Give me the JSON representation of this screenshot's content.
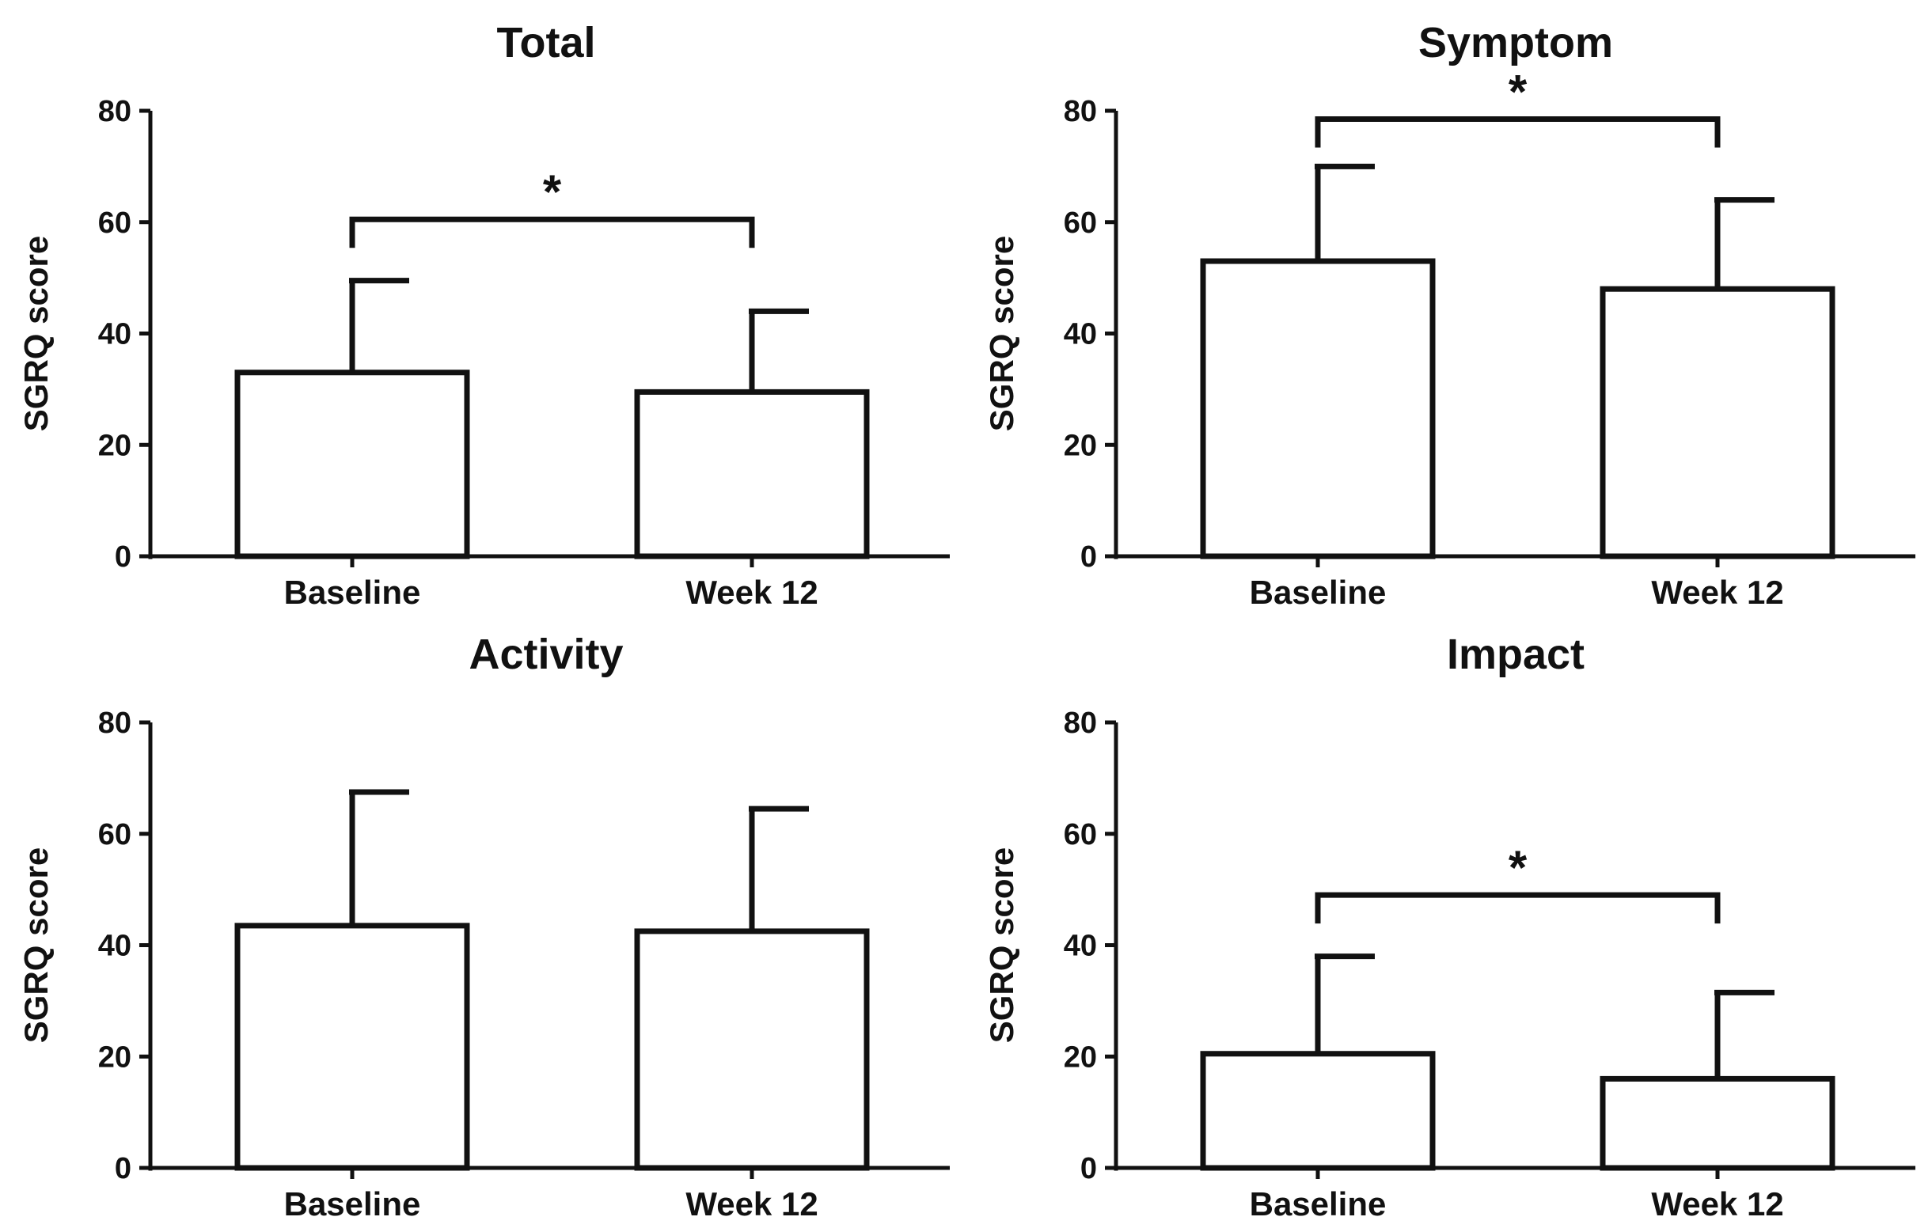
{
  "colors": {
    "ink": "#111111",
    "bar_fill": "#ffffff",
    "background": "#ffffff"
  },
  "chart_data": [
    {
      "type": "bar",
      "title": "Total",
      "xlabel": "",
      "ylabel": "SGRQ score",
      "categories": [
        "Baseline",
        "Week 12"
      ],
      "values": [
        33,
        29.5
      ],
      "error_upper": [
        49.5,
        44
      ],
      "ylim": [
        0,
        80
      ],
      "yticks": [
        0,
        20,
        40,
        60,
        80
      ],
      "significance": {
        "label": "*",
        "bracket_y": 60.5
      }
    },
    {
      "type": "bar",
      "title": "Symptom",
      "xlabel": "",
      "ylabel": "SGRQ score",
      "categories": [
        "Baseline",
        "Week 12"
      ],
      "values": [
        53,
        48
      ],
      "error_upper": [
        70,
        64
      ],
      "ylim": [
        0,
        80
      ],
      "yticks": [
        0,
        20,
        40,
        60,
        80
      ],
      "significance": {
        "label": "*",
        "bracket_y": 78.5
      }
    },
    {
      "type": "bar",
      "title": "Activity",
      "xlabel": "",
      "ylabel": "SGRQ score",
      "categories": [
        "Baseline",
        "Week 12"
      ],
      "values": [
        43.5,
        42.5
      ],
      "error_upper": [
        67.5,
        64.5
      ],
      "ylim": [
        0,
        80
      ],
      "yticks": [
        0,
        20,
        40,
        60,
        80
      ],
      "significance": null
    },
    {
      "type": "bar",
      "title": "Impact",
      "xlabel": "",
      "ylabel": "SGRQ score",
      "categories": [
        "Baseline",
        "Week 12"
      ],
      "values": [
        20.5,
        16
      ],
      "error_upper": [
        38,
        31.5
      ],
      "ylim": [
        0,
        80
      ],
      "yticks": [
        0,
        20,
        40,
        60,
        80
      ],
      "significance": {
        "label": "*",
        "bracket_y": 49
      }
    }
  ]
}
